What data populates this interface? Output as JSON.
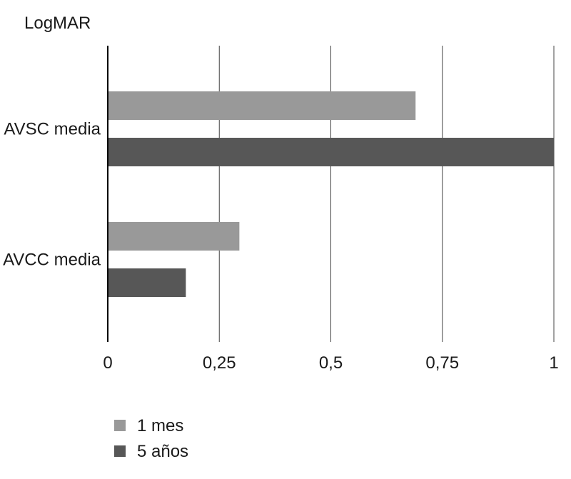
{
  "chart_data": {
    "type": "bar",
    "orientation": "horizontal",
    "unit_label": "LogMAR",
    "categories": [
      "AVSC media",
      "AVCC media"
    ],
    "series": [
      {
        "name": "1 mes",
        "values": [
          0.69,
          0.295
        ],
        "color": "#999999"
      },
      {
        "name": "5 años",
        "values": [
          1.0,
          0.175
        ],
        "color": "#575757"
      }
    ],
    "xlim": [
      0,
      1
    ],
    "xticks": [
      0,
      0.25,
      0.5,
      0.75,
      1
    ],
    "xtick_labels": [
      "0",
      "0,25",
      "0,5",
      "0,75",
      "1"
    ],
    "grid": "vertical",
    "legend_position": "bottom-left"
  }
}
